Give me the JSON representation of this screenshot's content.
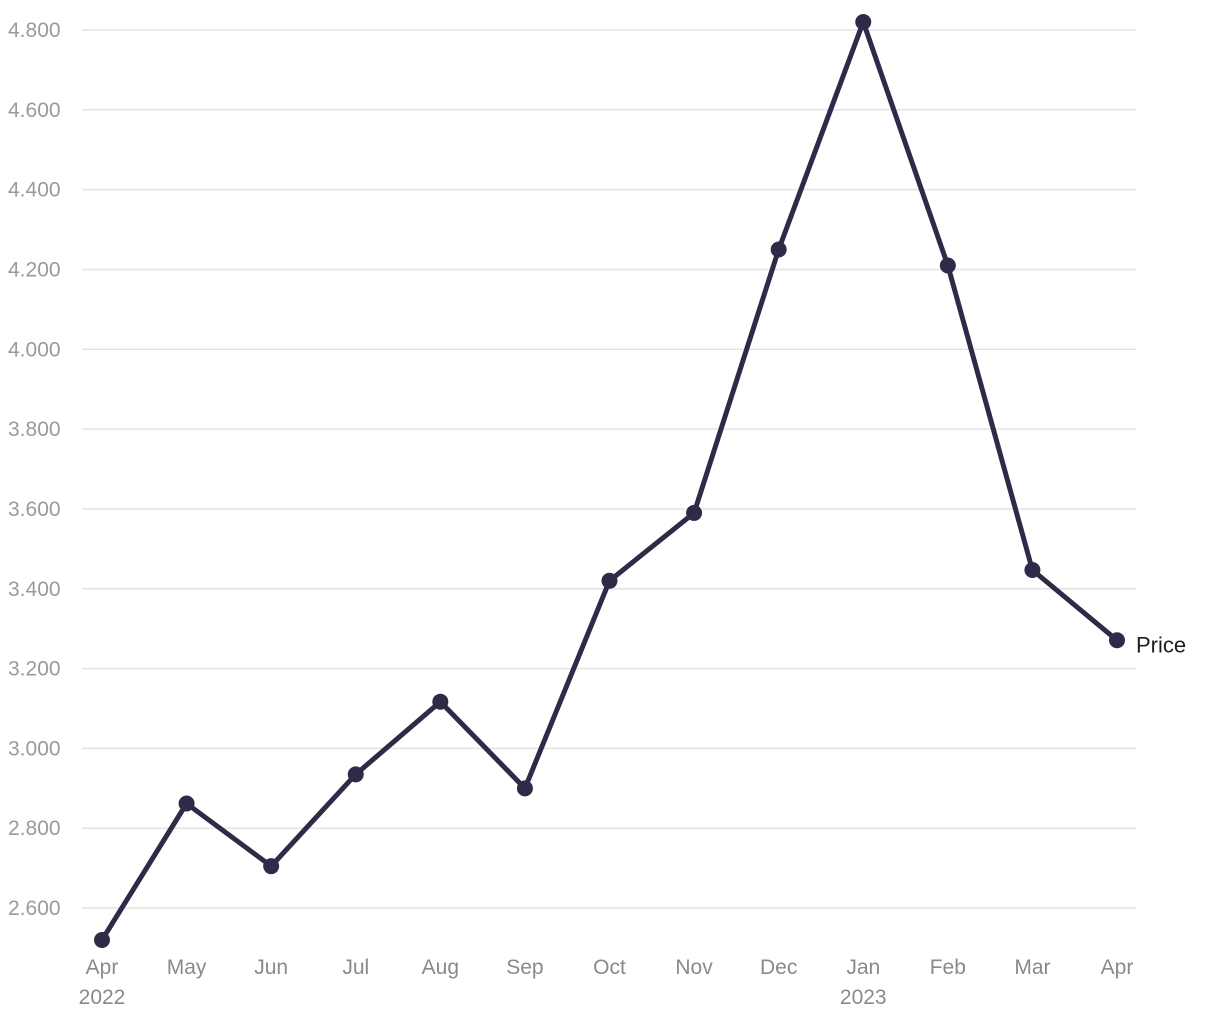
{
  "chart_data": {
    "type": "line",
    "x": [
      "2022-04",
      "2022-05",
      "2022-06",
      "2022-07",
      "2022-08",
      "2022-09",
      "2022-10",
      "2022-11",
      "2022-12",
      "2023-01",
      "2023-02",
      "2023-03",
      "2023-04"
    ],
    "x_tick_labels": [
      {
        "month": "Apr",
        "year": "2022"
      },
      {
        "month": "May",
        "year": ""
      },
      {
        "month": "Jun",
        "year": ""
      },
      {
        "month": "Jul",
        "year": ""
      },
      {
        "month": "Aug",
        "year": ""
      },
      {
        "month": "Sep",
        "year": ""
      },
      {
        "month": "Oct",
        "year": ""
      },
      {
        "month": "Nov",
        "year": ""
      },
      {
        "month": "Dec",
        "year": ""
      },
      {
        "month": "Jan",
        "year": "2023"
      },
      {
        "month": "Feb",
        "year": ""
      },
      {
        "month": "Mar",
        "year": ""
      },
      {
        "month": "Apr",
        "year": ""
      }
    ],
    "series": [
      {
        "name": "Price",
        "values": [
          2520,
          2862,
          2705,
          2935,
          3117,
          2900,
          3420,
          3590,
          4250,
          4820,
          4210,
          3447,
          3271
        ]
      }
    ],
    "ylim": [
      2520,
      4820
    ],
    "y_ticks": [
      2600,
      2800,
      3000,
      3200,
      3400,
      3600,
      3800,
      4000,
      4200,
      4400,
      4600,
      4800
    ],
    "y_tick_labels": [
      "2.600",
      "2.800",
      "3.000",
      "3.200",
      "3.400",
      "3.600",
      "3.800",
      "4.000",
      "4.200",
      "4.400",
      "4.600",
      "4.800"
    ],
    "grid": true,
    "legend": "inline-end",
    "colors": {
      "line": "#2f2a48",
      "grid": "#e3e3e3",
      "tick_text": "#9a9a9a"
    }
  }
}
